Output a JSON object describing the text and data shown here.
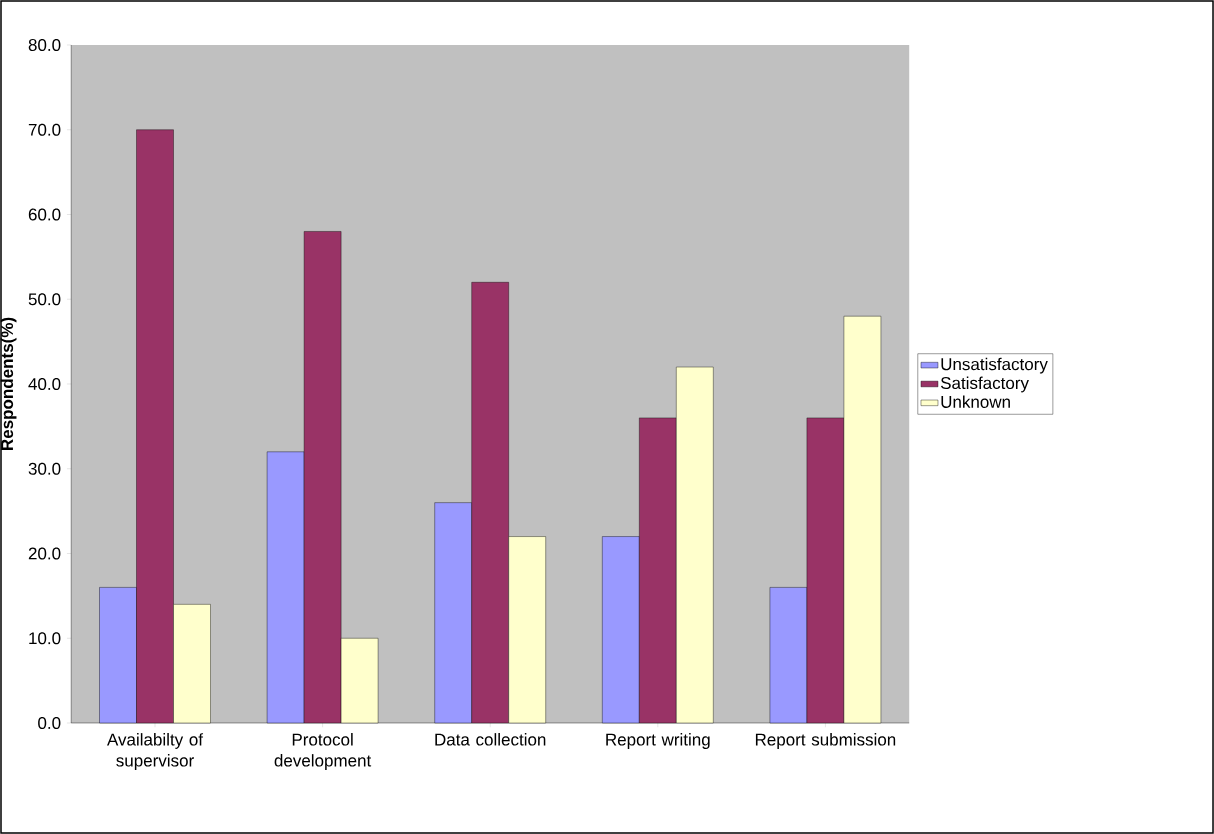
{
  "chart_data": {
    "type": "bar",
    "ylabel": "Respondents(%)",
    "categories": [
      "Availabilty of supervisor",
      "Protocol development",
      "Data collection",
      "Report writing",
      "Report submission"
    ],
    "series": [
      {
        "name": "Unsatisfactory",
        "color": "#9999ff",
        "values": [
          16,
          32,
          26,
          22,
          16
        ]
      },
      {
        "name": "Satisfactory",
        "color": "#993366",
        "values": [
          70,
          58,
          52,
          36,
          36
        ]
      },
      {
        "name": "Unknown",
        "color": "#ffffcc",
        "values": [
          14,
          10,
          22,
          42,
          48
        ]
      }
    ],
    "ylim": [
      0,
      80
    ],
    "yticks": [
      {
        "value": 0,
        "label": "0.0"
      },
      {
        "value": 10,
        "label": "10.0"
      },
      {
        "value": 20,
        "label": "20.0"
      },
      {
        "value": 30,
        "label": "30.0"
      },
      {
        "value": 40,
        "label": "40.0"
      },
      {
        "value": 50,
        "label": "50.0"
      },
      {
        "value": 60,
        "label": "60.0"
      },
      {
        "value": 70,
        "label": "70.0"
      },
      {
        "value": 80,
        "label": "80.0"
      }
    ],
    "legend": "right"
  }
}
